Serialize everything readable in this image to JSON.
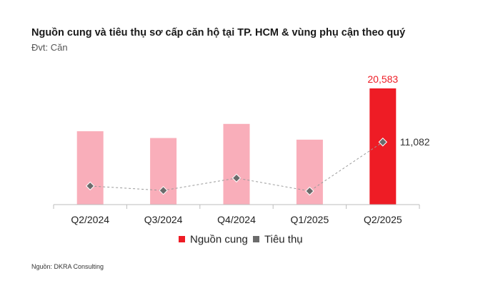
{
  "chart_data": {
    "type": "bar",
    "title": "Nguồn cung và tiêu thụ sơ cấp căn hộ tại TP. HCM & vùng phụ cận theo quý",
    "subtitle": "Đvt: Căn",
    "source": "Nguồn: DKRA Consulting",
    "categories": [
      "Q2/2024",
      "Q3/2024",
      "Q4/2024",
      "Q1/2025",
      "Q2/2025"
    ],
    "series": [
      {
        "name": "Nguồn cung",
        "type": "bar",
        "values": [
          13000,
          11800,
          14300,
          11500,
          20583
        ],
        "colors": [
          "#f9aeba",
          "#f9aeba",
          "#f9aeba",
          "#f9aeba",
          "#ee1c25"
        ],
        "labels": [
          "",
          "",
          "",
          "",
          "20,583"
        ],
        "label_color": "#ee1c25"
      },
      {
        "name": "Tiêu thụ",
        "type": "line",
        "values": [
          3300,
          2500,
          4700,
          2400,
          11082
        ],
        "color": "#6b6b6b",
        "labels": [
          "",
          "",
          "",
          "",
          "11,082"
        ],
        "label_color": "#333333"
      }
    ],
    "ylim": [
      0,
      20583
    ],
    "grid": false,
    "legend_position": "bottom"
  }
}
